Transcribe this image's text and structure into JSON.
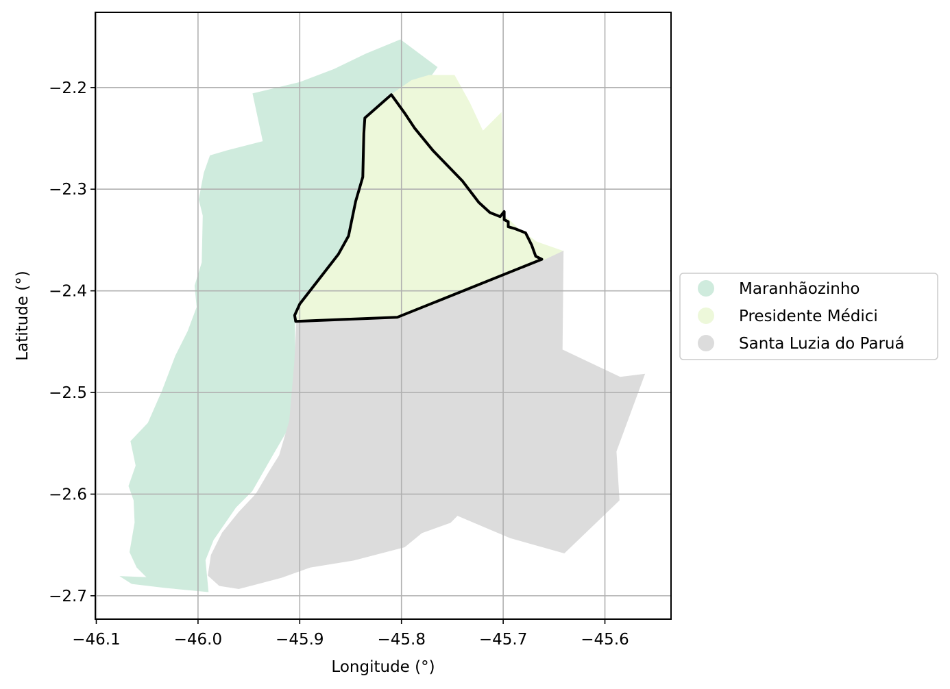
{
  "chart_data": {
    "type": "map",
    "xlabel": "Longitude (°)",
    "ylabel": "Latitude (°)",
    "xlim": [
      -46.101,
      -45.535
    ],
    "ylim": [
      -2.723,
      -2.126
    ],
    "grid": true,
    "legend_position": "right",
    "x_ticks": [
      {
        "value": -46.1,
        "label": "−46.1"
      },
      {
        "value": -46.0,
        "label": "−46.0"
      },
      {
        "value": -45.9,
        "label": "−45.9"
      },
      {
        "value": -45.8,
        "label": "−45.8"
      },
      {
        "value": -45.7,
        "label": "−45.7"
      },
      {
        "value": -45.6,
        "label": "−45.6"
      }
    ],
    "y_ticks": [
      {
        "value": -2.2,
        "label": "−2.2"
      },
      {
        "value": -2.3,
        "label": "−2.3"
      },
      {
        "value": -2.4,
        "label": "−2.4"
      },
      {
        "value": -2.5,
        "label": "−2.5"
      },
      {
        "value": -2.6,
        "label": "−2.6"
      },
      {
        "value": -2.7,
        "label": "−2.7"
      }
    ],
    "regions": [
      {
        "name": "Maranhãozinho",
        "color": "#cfebdd",
        "coords": [
          [
            -45.801,
            -2.153
          ],
          [
            -45.765,
            -2.18
          ],
          [
            -45.788,
            -2.212
          ],
          [
            -45.812,
            -2.206
          ],
          [
            -45.836,
            -2.23
          ],
          [
            -45.839,
            -2.245
          ],
          [
            -45.838,
            -2.288
          ],
          [
            -45.845,
            -2.31
          ],
          [
            -45.852,
            -2.345
          ],
          [
            -45.862,
            -2.363
          ],
          [
            -45.9,
            -2.412
          ],
          [
            -45.905,
            -2.43
          ],
          [
            -45.905,
            -2.47
          ],
          [
            -45.907,
            -2.49
          ],
          [
            -45.91,
            -2.528
          ],
          [
            -45.913,
            -2.538
          ],
          [
            -45.927,
            -2.562
          ],
          [
            -45.947,
            -2.597
          ],
          [
            -45.963,
            -2.613
          ],
          [
            -45.985,
            -2.645
          ],
          [
            -45.993,
            -2.665
          ],
          [
            -45.99,
            -2.696
          ],
          [
            -46.032,
            -2.692
          ],
          [
            -46.065,
            -2.688
          ],
          [
            -46.076,
            -2.681
          ],
          [
            -46.05,
            -2.682
          ],
          [
            -46.06,
            -2.672
          ],
          [
            -46.067,
            -2.657
          ],
          [
            -46.062,
            -2.628
          ],
          [
            -46.063,
            -2.606
          ],
          [
            -46.068,
            -2.592
          ],
          [
            -46.061,
            -2.572
          ],
          [
            -46.066,
            -2.548
          ],
          [
            -46.049,
            -2.53
          ],
          [
            -46.035,
            -2.498
          ],
          [
            -46.022,
            -2.464
          ],
          [
            -46.01,
            -2.44
          ],
          [
            -46.001,
            -2.416
          ],
          [
            -46.003,
            -2.395
          ],
          [
            -45.996,
            -2.372
          ],
          [
            -45.995,
            -2.326
          ],
          [
            -45.999,
            -2.31
          ],
          [
            -45.994,
            -2.284
          ],
          [
            -45.988,
            -2.267
          ],
          [
            -45.971,
            -2.262
          ],
          [
            -45.936,
            -2.253
          ],
          [
            -45.946,
            -2.206
          ],
          [
            -45.9,
            -2.195
          ],
          [
            -45.866,
            -2.182
          ],
          [
            -45.835,
            -2.167
          ]
        ]
      },
      {
        "name": "Presidente Médici",
        "color": "#edf8da",
        "coords": [
          [
            -45.81,
            -2.207
          ],
          [
            -45.79,
            -2.193
          ],
          [
            -45.773,
            -2.188
          ],
          [
            -45.748,
            -2.188
          ],
          [
            -45.743,
            -2.197
          ],
          [
            -45.733,
            -2.215
          ],
          [
            -45.72,
            -2.243
          ],
          [
            -45.702,
            -2.225
          ],
          [
            -45.7,
            -2.283
          ],
          [
            -45.7,
            -2.325
          ],
          [
            -45.686,
            -2.338
          ],
          [
            -45.667,
            -2.352
          ],
          [
            -45.641,
            -2.361
          ],
          [
            -45.662,
            -2.371
          ],
          [
            -45.804,
            -2.428
          ],
          [
            -45.903,
            -2.429
          ],
          [
            -45.9,
            -2.412
          ],
          [
            -45.862,
            -2.363
          ],
          [
            -45.852,
            -2.345
          ],
          [
            -45.845,
            -2.31
          ],
          [
            -45.838,
            -2.288
          ],
          [
            -45.839,
            -2.245
          ],
          [
            -45.836,
            -2.23
          ]
        ]
      },
      {
        "name": "Santa Luzia do Paruá",
        "color": "#dcdcdc",
        "coords": [
          [
            -45.641,
            -2.361
          ],
          [
            -45.642,
            -2.458
          ],
          [
            -45.585,
            -2.485
          ],
          [
            -45.561,
            -2.482
          ],
          [
            -45.589,
            -2.558
          ],
          [
            -45.586,
            -2.606
          ],
          [
            -45.64,
            -2.658
          ],
          [
            -45.693,
            -2.643
          ],
          [
            -45.745,
            -2.621
          ],
          [
            -45.752,
            -2.628
          ],
          [
            -45.78,
            -2.638
          ],
          [
            -45.797,
            -2.652
          ],
          [
            -45.847,
            -2.665
          ],
          [
            -45.89,
            -2.672
          ],
          [
            -45.918,
            -2.682
          ],
          [
            -45.96,
            -2.693
          ],
          [
            -45.979,
            -2.69
          ],
          [
            -45.99,
            -2.68
          ],
          [
            -45.987,
            -2.66
          ],
          [
            -45.976,
            -2.638
          ],
          [
            -45.96,
            -2.618
          ],
          [
            -45.943,
            -2.6
          ],
          [
            -45.93,
            -2.578
          ],
          [
            -45.92,
            -2.562
          ],
          [
            -45.91,
            -2.528
          ],
          [
            -45.905,
            -2.47
          ],
          [
            -45.903,
            -2.429
          ],
          [
            -45.804,
            -2.428
          ],
          [
            -45.662,
            -2.371
          ]
        ]
      }
    ],
    "highlight": {
      "name": "Presidente Médici",
      "stroke": "#000000",
      "coords": [
        [
          -45.81,
          -2.207
        ],
        [
          -45.797,
          -2.225
        ],
        [
          -45.787,
          -2.24
        ],
        [
          -45.769,
          -2.262
        ],
        [
          -45.74,
          -2.292
        ],
        [
          -45.724,
          -2.313
        ],
        [
          -45.713,
          -2.323
        ],
        [
          -45.703,
          -2.327
        ],
        [
          -45.699,
          -2.322
        ],
        [
          -45.699,
          -2.33
        ],
        [
          -45.695,
          -2.332
        ],
        [
          -45.695,
          -2.337
        ],
        [
          -45.688,
          -2.339
        ],
        [
          -45.678,
          -2.343
        ],
        [
          -45.672,
          -2.355
        ],
        [
          -45.668,
          -2.366
        ],
        [
          -45.662,
          -2.369
        ],
        [
          -45.804,
          -2.426
        ],
        [
          -45.904,
          -2.43
        ],
        [
          -45.905,
          -2.424
        ],
        [
          -45.9,
          -2.413
        ],
        [
          -45.862,
          -2.364
        ],
        [
          -45.852,
          -2.346
        ],
        [
          -45.845,
          -2.312
        ],
        [
          -45.838,
          -2.288
        ],
        [
          -45.837,
          -2.245
        ],
        [
          -45.836,
          -2.23
        ]
      ]
    },
    "legend": [
      {
        "label": "Maranhãozinho",
        "color": "#cfebdd"
      },
      {
        "label": "Presidente Médici",
        "color": "#edf8da"
      },
      {
        "label": "Santa Luzia do Paruá",
        "color": "#dcdcdc"
      }
    ]
  }
}
